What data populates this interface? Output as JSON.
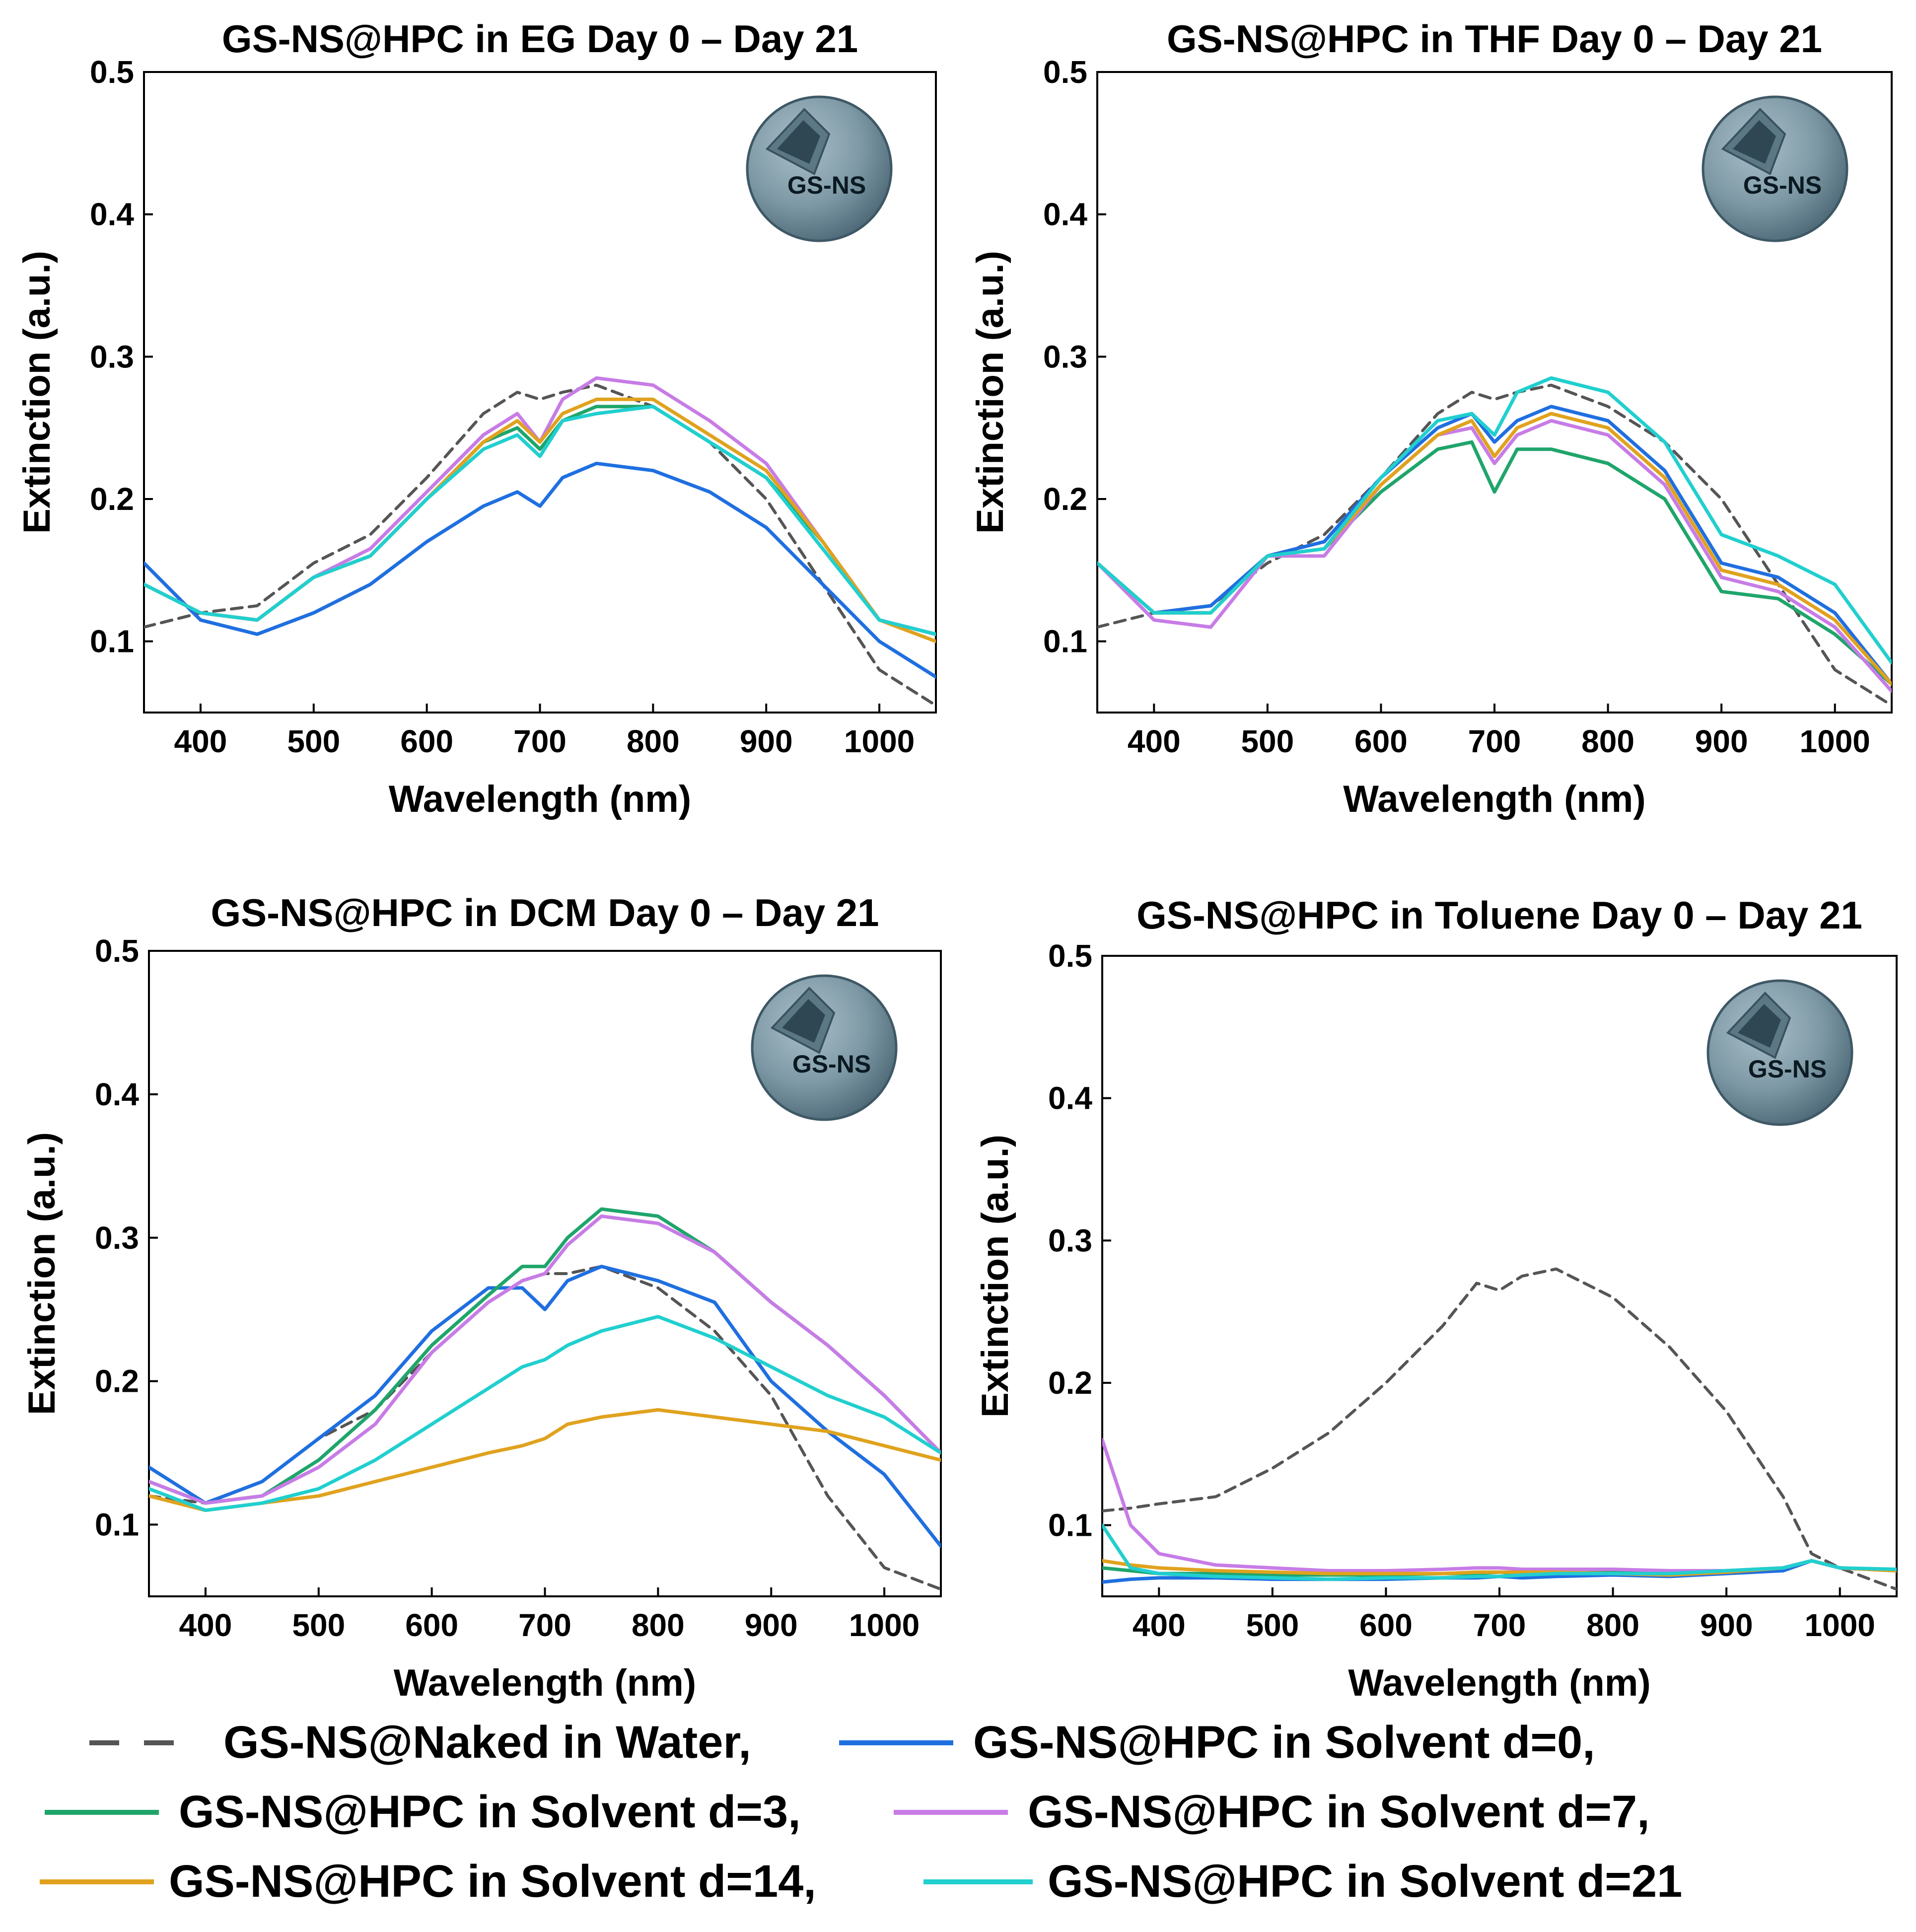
{
  "colors": {
    "water": "#555555",
    "d0": "#1f6fe0",
    "d3": "#1fa56b",
    "d7": "#c77ce6",
    "d14": "#e0a21e",
    "d21": "#21cfcf"
  },
  "badge_label": "GS-NS",
  "chart_data": [
    {
      "type": "line",
      "title": "GS-NS@HPC in EG Day 0 – Day 21",
      "xlabel": "Wavelength (nm)",
      "ylabel": "Extinction (a.u.)",
      "xlim": [
        350,
        1050
      ],
      "ylim": [
        0.05,
        0.5
      ],
      "xticks": [
        400,
        500,
        600,
        700,
        800,
        900,
        1000
      ],
      "yticks": [
        0.1,
        0.2,
        0.3,
        0.4,
        0.5
      ],
      "x": [
        350,
        400,
        450,
        500,
        550,
        600,
        650,
        680,
        700,
        720,
        750,
        800,
        850,
        900,
        950,
        1000,
        1050
      ],
      "series": [
        {
          "name": "GS-NS@Naked in Water",
          "key": "water",
          "dash": true,
          "values": [
            0.11,
            0.12,
            0.125,
            0.155,
            0.175,
            0.215,
            0.26,
            0.275,
            0.27,
            0.275,
            0.28,
            0.265,
            0.24,
            0.2,
            0.14,
            0.08,
            0.055
          ]
        },
        {
          "name": "GS-NS@HPC in Solvent d=0",
          "key": "d0",
          "values": [
            0.155,
            0.115,
            0.105,
            0.12,
            0.14,
            0.17,
            0.195,
            0.205,
            0.195,
            0.215,
            0.225,
            0.22,
            0.205,
            0.18,
            0.14,
            0.1,
            0.075
          ]
        },
        {
          "name": "GS-NS@HPC in Solvent d=3",
          "key": "d3",
          "values": [
            0.14,
            0.12,
            0.115,
            0.145,
            0.16,
            0.2,
            0.24,
            0.25,
            0.235,
            0.255,
            0.265,
            0.265,
            0.24,
            0.215,
            0.17,
            0.115,
            0.105
          ]
        },
        {
          "name": "GS-NS@HPC in Solvent d=7",
          "key": "d7",
          "values": [
            0.14,
            0.12,
            0.115,
            0.145,
            0.165,
            0.205,
            0.245,
            0.26,
            0.24,
            0.27,
            0.285,
            0.28,
            0.255,
            0.225,
            0.17,
            0.115,
            0.105
          ]
        },
        {
          "name": "GS-NS@HPC in Solvent d=14",
          "key": "d14",
          "values": [
            0.14,
            0.12,
            0.115,
            0.145,
            0.16,
            0.2,
            0.24,
            0.255,
            0.24,
            0.26,
            0.27,
            0.27,
            0.245,
            0.22,
            0.17,
            0.115,
            0.1
          ]
        },
        {
          "name": "GS-NS@HPC in Solvent d=21",
          "key": "d21",
          "values": [
            0.14,
            0.12,
            0.115,
            0.145,
            0.16,
            0.2,
            0.235,
            0.245,
            0.23,
            0.255,
            0.26,
            0.265,
            0.24,
            0.215,
            0.165,
            0.115,
            0.105
          ]
        }
      ]
    },
    {
      "type": "line",
      "title": "GS-NS@HPC in THF Day 0 – Day 21",
      "xlabel": "Wavelength (nm)",
      "ylabel": "Extinction (a.u.)",
      "xlim": [
        350,
        1050
      ],
      "ylim": [
        0.05,
        0.5
      ],
      "xticks": [
        400,
        500,
        600,
        700,
        800,
        900,
        1000
      ],
      "yticks": [
        0.1,
        0.2,
        0.3,
        0.4,
        0.5
      ],
      "x": [
        350,
        400,
        450,
        500,
        550,
        600,
        650,
        680,
        700,
        720,
        750,
        800,
        850,
        900,
        950,
        1000,
        1050
      ],
      "series": [
        {
          "name": "GS-NS@Naked in Water",
          "key": "water",
          "dash": true,
          "values": [
            0.11,
            0.12,
            0.125,
            0.155,
            0.175,
            0.215,
            0.26,
            0.275,
            0.27,
            0.275,
            0.28,
            0.265,
            0.24,
            0.2,
            0.14,
            0.08,
            0.055
          ]
        },
        {
          "name": "GS-NS@HPC in Solvent d=0",
          "key": "d0",
          "values": [
            0.155,
            0.12,
            0.125,
            0.16,
            0.17,
            0.215,
            0.25,
            0.26,
            0.24,
            0.255,
            0.265,
            0.255,
            0.22,
            0.155,
            0.145,
            0.12,
            0.07
          ]
        },
        {
          "name": "GS-NS@HPC in Solvent d=3",
          "key": "d3",
          "values": [
            0.155,
            0.12,
            0.12,
            0.16,
            0.165,
            0.205,
            0.235,
            0.24,
            0.205,
            0.235,
            0.235,
            0.225,
            0.2,
            0.135,
            0.13,
            0.105,
            0.07
          ]
        },
        {
          "name": "GS-NS@HPC in Solvent d=7",
          "key": "d7",
          "values": [
            0.155,
            0.115,
            0.11,
            0.16,
            0.16,
            0.21,
            0.245,
            0.25,
            0.225,
            0.245,
            0.255,
            0.245,
            0.21,
            0.145,
            0.135,
            0.11,
            0.065
          ]
        },
        {
          "name": "GS-NS@HPC in Solvent d=14",
          "key": "d14",
          "values": [
            0.155,
            0.12,
            0.12,
            0.16,
            0.165,
            0.21,
            0.245,
            0.255,
            0.23,
            0.25,
            0.26,
            0.25,
            0.215,
            0.15,
            0.14,
            0.115,
            0.07
          ]
        },
        {
          "name": "GS-NS@HPC in Solvent d=21",
          "key": "d21",
          "values": [
            0.155,
            0.12,
            0.12,
            0.16,
            0.165,
            0.215,
            0.255,
            0.26,
            0.245,
            0.275,
            0.285,
            0.275,
            0.24,
            0.175,
            0.16,
            0.14,
            0.085
          ]
        }
      ]
    },
    {
      "type": "line",
      "title": "GS-NS@HPC in DCM Day 0 – Day 21",
      "xlabel": "Wavelength (nm)",
      "ylabel": "Extinction (a.u.)",
      "xlim": [
        350,
        1050
      ],
      "ylim": [
        0.05,
        0.5
      ],
      "xticks": [
        400,
        500,
        600,
        700,
        800,
        900,
        1000
      ],
      "yticks": [
        0.1,
        0.2,
        0.3,
        0.4,
        0.5
      ],
      "x": [
        350,
        400,
        450,
        500,
        550,
        600,
        650,
        680,
        700,
        720,
        750,
        800,
        850,
        900,
        950,
        1000,
        1050
      ],
      "series": [
        {
          "name": "GS-NS@Naked in Water",
          "key": "water",
          "dash": true,
          "values": [
            0.12,
            0.115,
            0.13,
            0.16,
            0.18,
            0.22,
            0.255,
            0.27,
            0.275,
            0.275,
            0.28,
            0.265,
            0.235,
            0.19,
            0.12,
            0.07,
            0.055
          ]
        },
        {
          "name": "GS-NS@HPC in Solvent d=0",
          "key": "d0",
          "values": [
            0.14,
            0.115,
            0.13,
            0.16,
            0.19,
            0.235,
            0.265,
            0.265,
            0.25,
            0.27,
            0.28,
            0.27,
            0.255,
            0.2,
            0.165,
            0.135,
            0.085
          ]
        },
        {
          "name": "GS-NS@HPC in Solvent d=3",
          "key": "d3",
          "values": [
            0.13,
            0.115,
            0.12,
            0.145,
            0.18,
            0.225,
            0.26,
            0.28,
            0.28,
            0.3,
            0.32,
            0.315,
            0.29,
            0.255,
            0.225,
            0.19,
            0.15
          ]
        },
        {
          "name": "GS-NS@HPC in Solvent d=7",
          "key": "d7",
          "values": [
            0.13,
            0.115,
            0.12,
            0.14,
            0.17,
            0.22,
            0.255,
            0.27,
            0.275,
            0.295,
            0.315,
            0.31,
            0.29,
            0.255,
            0.225,
            0.19,
            0.15
          ]
        },
        {
          "name": "GS-NS@HPC in Solvent d=14",
          "key": "d14",
          "values": [
            0.12,
            0.11,
            0.115,
            0.12,
            0.13,
            0.14,
            0.15,
            0.155,
            0.16,
            0.17,
            0.175,
            0.18,
            0.175,
            0.17,
            0.165,
            0.155,
            0.145
          ]
        },
        {
          "name": "GS-NS@HPC in Solvent d=21",
          "key": "d21",
          "values": [
            0.125,
            0.11,
            0.115,
            0.125,
            0.145,
            0.17,
            0.195,
            0.21,
            0.215,
            0.225,
            0.235,
            0.245,
            0.23,
            0.21,
            0.19,
            0.175,
            0.15
          ]
        }
      ]
    },
    {
      "type": "line",
      "title": "GS-NS@HPC in Toluene Day 0 – Day 21",
      "xlabel": "Wavelength (nm)",
      "ylabel": "Extinction (a.u.)",
      "xlim": [
        350,
        1050
      ],
      "ylim": [
        0.05,
        0.5
      ],
      "xticks": [
        400,
        500,
        600,
        700,
        800,
        900,
        1000
      ],
      "yticks": [
        0.1,
        0.2,
        0.3,
        0.4,
        0.5
      ],
      "x": [
        350,
        375,
        400,
        450,
        500,
        550,
        600,
        650,
        680,
        700,
        720,
        750,
        800,
        850,
        900,
        950,
        975,
        1000,
        1050
      ],
      "series": [
        {
          "name": "GS-NS@Naked in Water",
          "key": "water",
          "dash": true,
          "values": [
            0.11,
            0.112,
            0.115,
            0.12,
            0.14,
            0.165,
            0.2,
            0.24,
            0.27,
            0.265,
            0.275,
            0.28,
            0.26,
            0.225,
            0.18,
            0.12,
            0.08,
            0.07,
            0.055
          ]
        },
        {
          "name": "GS-NS@HPC in Solvent d=0",
          "key": "d0",
          "values": [
            0.06,
            0.062,
            0.063,
            0.063,
            0.062,
            0.062,
            0.062,
            0.063,
            0.063,
            0.064,
            0.063,
            0.064,
            0.065,
            0.064,
            0.066,
            0.068,
            0.075,
            0.07,
            0.068
          ]
        },
        {
          "name": "GS-NS@HPC in Solvent d=3",
          "key": "d3",
          "values": [
            0.07,
            0.068,
            0.066,
            0.066,
            0.065,
            0.065,
            0.065,
            0.066,
            0.066,
            0.067,
            0.066,
            0.066,
            0.067,
            0.066,
            0.068,
            0.07,
            0.075,
            0.07,
            0.068
          ]
        },
        {
          "name": "GS-NS@HPC in Solvent d=7",
          "key": "d7",
          "values": [
            0.16,
            0.1,
            0.08,
            0.072,
            0.07,
            0.068,
            0.068,
            0.069,
            0.07,
            0.07,
            0.069,
            0.069,
            0.069,
            0.068,
            0.068,
            0.07,
            0.075,
            0.07,
            0.068
          ]
        },
        {
          "name": "GS-NS@HPC in Solvent d=14",
          "key": "d14",
          "values": [
            0.075,
            0.072,
            0.07,
            0.068,
            0.067,
            0.066,
            0.066,
            0.066,
            0.067,
            0.067,
            0.067,
            0.067,
            0.066,
            0.065,
            0.067,
            0.07,
            0.075,
            0.07,
            0.068
          ]
        },
        {
          "name": "GS-NS@HPC in Solvent d=21",
          "key": "d21",
          "values": [
            0.1,
            0.07,
            0.066,
            0.064,
            0.063,
            0.062,
            0.063,
            0.063,
            0.064,
            0.064,
            0.065,
            0.066,
            0.066,
            0.066,
            0.068,
            0.07,
            0.075,
            0.07,
            0.069
          ]
        }
      ]
    }
  ],
  "legend": [
    {
      "key": "water",
      "dash": true,
      "label": "GS-NS@Naked in Water,"
    },
    {
      "key": "d0",
      "label": "GS-NS@HPC in Solvent d=0,"
    },
    {
      "key": "d3",
      "label": "GS-NS@HPC in Solvent d=3,"
    },
    {
      "key": "d7",
      "label": "GS-NS@HPC in Solvent d=7,"
    },
    {
      "key": "d14",
      "label": "GS-NS@HPC in Solvent d=14,"
    },
    {
      "key": "d21",
      "label": "GS-NS@HPC in Solvent d=21"
    }
  ]
}
